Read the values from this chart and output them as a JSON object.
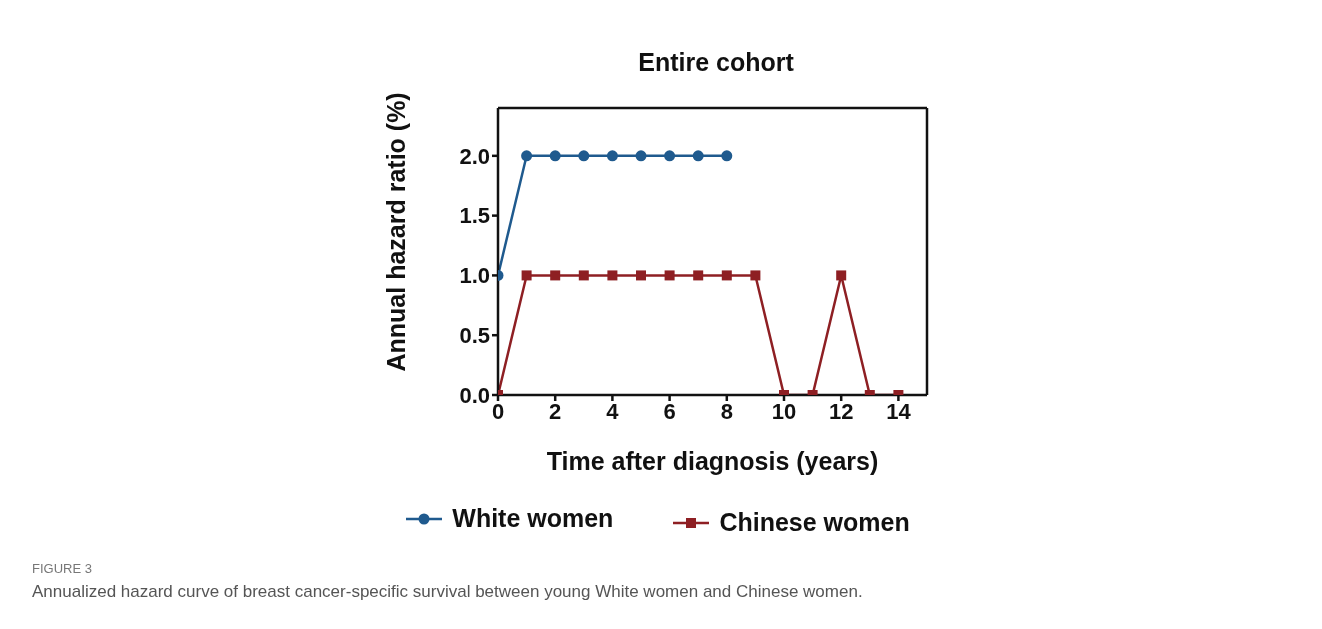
{
  "chart_data": {
    "type": "line",
    "title": "Entire cohort",
    "xlabel": "Time after diagnosis (years)",
    "ylabel": "Annual hazard ratio (%)",
    "x": [
      0,
      1,
      2,
      3,
      4,
      5,
      6,
      7,
      8,
      9,
      10,
      11,
      12,
      13,
      14
    ],
    "series": [
      {
        "name": "White women",
        "color": "#1f5a8e",
        "marker": "circle",
        "values": [
          1,
          2,
          2,
          2,
          2,
          2,
          2,
          2,
          2,
          null,
          null,
          null,
          null,
          null,
          null
        ]
      },
      {
        "name": "Chinese women",
        "color": "#8e1f23",
        "marker": "square",
        "values": [
          0,
          1,
          1,
          1,
          1,
          1,
          1,
          1,
          1,
          1,
          0,
          0,
          1,
          0,
          0
        ]
      }
    ],
    "xlim": [
      0,
      15
    ],
    "xticks": [
      0,
      2,
      4,
      6,
      8,
      10,
      12,
      14
    ],
    "ylim": [
      0,
      2.4
    ],
    "yticks": [
      {
        "value": 0,
        "label": "0.0"
      },
      {
        "value": 0.5,
        "label": "0.5"
      },
      {
        "value": 1,
        "label": "1.0"
      },
      {
        "value": 1.5,
        "label": "1.5"
      },
      {
        "value": 2,
        "label": "2.0"
      }
    ],
    "grid": false,
    "legend": "bottom",
    "line_style": "solid",
    "annotations": [
      "FIGURE 3",
      "Annualized hazard curve of breast cancer-specific survival between young White women and Chinese women."
    ]
  }
}
